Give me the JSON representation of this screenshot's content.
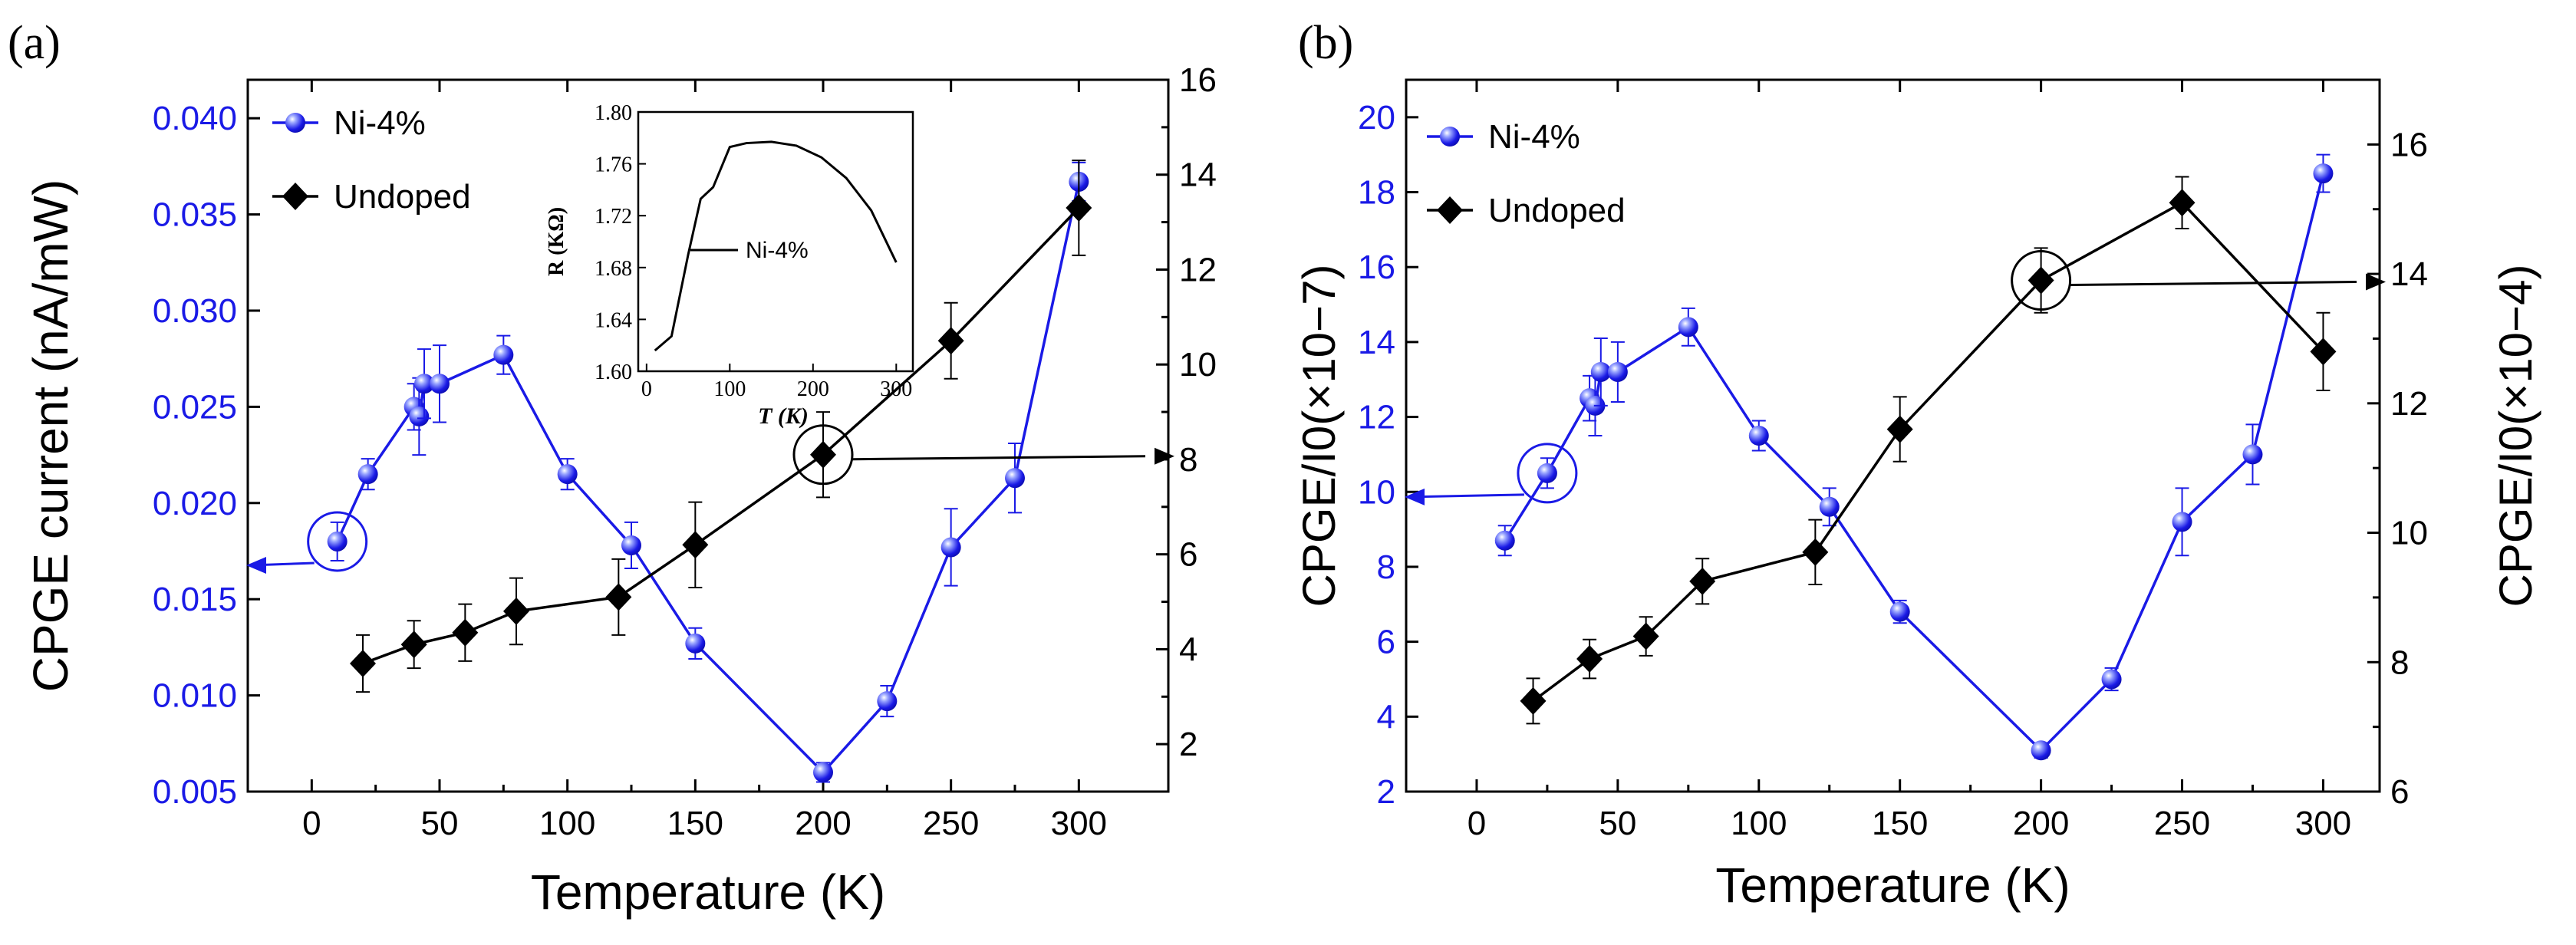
{
  "colors": {
    "blue": "#1a1ae6",
    "black": "#000000",
    "sphere_light": "#9aa6ff",
    "sphere_dark": "#0a0aa8"
  },
  "chart_data": [
    {
      "panel_label": "(a)",
      "type": "line",
      "xlabel": "Temperature (K)",
      "ylabel_left": "CPGE current (nA/mW)",
      "ylabel_right": "",
      "xlim": [
        -25,
        335
      ],
      "ylim_left": [
        0.005,
        0.042
      ],
      "ylim_right": [
        1,
        16
      ],
      "x_ticks": [
        0,
        50,
        100,
        150,
        200,
        250,
        300
      ],
      "x_tick_labels": [
        "0",
        "50",
        "100",
        "150",
        "200",
        "250",
        "300"
      ],
      "y_left_ticks": [
        0.005,
        0.01,
        0.015,
        0.02,
        0.025,
        0.03,
        0.035,
        0.04
      ],
      "y_left_tick_labels": [
        "0.005",
        "0.010",
        "0.015",
        "0.020",
        "0.025",
        "0.030",
        "0.035",
        "0.040"
      ],
      "y_right_ticks": [
        2,
        4,
        6,
        8,
        10,
        12,
        14,
        16
      ],
      "y_right_tick_labels": [
        "2",
        "4",
        "6",
        "8",
        "10",
        "12",
        "14",
        "16"
      ],
      "legend": [
        "Ni-4%",
        "Undoped"
      ],
      "series": [
        {
          "name": "Ni-4%",
          "axis": "left",
          "color": "blue",
          "marker": "sphere",
          "x": [
            10,
            22,
            40,
            42,
            44,
            50,
            75,
            100,
            125,
            150,
            200,
            225,
            250,
            275,
            300
          ],
          "y": [
            0.018,
            0.0215,
            0.025,
            0.0245,
            0.0262,
            0.0262,
            0.0277,
            0.0215,
            0.0178,
            0.0127,
            0.006,
            0.0097,
            0.0177,
            0.0213,
            0.0367
          ],
          "err": [
            0.001,
            0.0008,
            0.0012,
            0.002,
            0.0018,
            0.002,
            0.001,
            0.0008,
            0.0012,
            0.0008,
            0.0005,
            0.0008,
            0.002,
            0.0018,
            0.001
          ]
        },
        {
          "name": "Undoped",
          "axis": "right",
          "color": "black",
          "marker": "diamond",
          "x": [
            20,
            40,
            60,
            80,
            120,
            150,
            200,
            250,
            300
          ],
          "y": [
            3.7,
            4.1,
            4.35,
            4.8,
            5.1,
            6.2,
            8.1,
            10.5,
            13.3
          ],
          "err": [
            0.6,
            0.5,
            0.6,
            0.7,
            0.8,
            0.9,
            0.9,
            0.8,
            1.0
          ]
        }
      ],
      "annotations": [
        {
          "circle_at": [
            10,
            0.018
          ],
          "axis": "left",
          "arrow_to": "left"
        },
        {
          "circle_at": [
            200,
            8.1
          ],
          "axis": "right",
          "arrow_to": "right"
        }
      ],
      "inset": {
        "type": "line",
        "series_label": "Ni-4%",
        "xlabel": "T (K)",
        "ylabel": "R (KΩ)",
        "xlim": [
          -10,
          320
        ],
        "ylim": [
          1.6,
          1.8
        ],
        "x_ticks": [
          0,
          100,
          200,
          300
        ],
        "x_tick_labels": [
          "0",
          "100",
          "200",
          "300"
        ],
        "y_ticks": [
          1.6,
          1.64,
          1.68,
          1.72,
          1.76,
          1.8
        ],
        "y_tick_labels": [
          "1.60",
          "1.64",
          "1.68",
          "1.72",
          "1.76",
          "1.80"
        ],
        "x": [
          10,
          30,
          50,
          65,
          80,
          100,
          120,
          150,
          180,
          210,
          240,
          270,
          300
        ],
        "y": [
          1.616,
          1.627,
          1.69,
          1.733,
          1.742,
          1.773,
          1.776,
          1.777,
          1.774,
          1.765,
          1.749,
          1.724,
          1.684
        ]
      }
    },
    {
      "panel_label": "(b)",
      "type": "line",
      "xlabel": "Temperature (K)",
      "ylabel_left": "CPGE/I0(×10−7)",
      "ylabel_right": "CPGE/I0(×10−4)",
      "xlim": [
        -25,
        320
      ],
      "ylim_left": [
        2,
        21
      ],
      "ylim_right": [
        6,
        17
      ],
      "x_ticks": [
        0,
        50,
        100,
        150,
        200,
        250,
        300
      ],
      "x_tick_labels": [
        "0",
        "50",
        "100",
        "150",
        "200",
        "250",
        "300"
      ],
      "y_left_ticks": [
        2,
        4,
        6,
        8,
        10,
        12,
        14,
        16,
        18,
        20
      ],
      "y_left_tick_labels": [
        "2",
        "4",
        "6",
        "8",
        "10",
        "12",
        "14",
        "16",
        "18",
        "20"
      ],
      "y_right_ticks": [
        6,
        8,
        10,
        12,
        14,
        16
      ],
      "y_right_tick_labels": [
        "6",
        "8",
        "10",
        "12",
        "14",
        "16"
      ],
      "legend": [
        "Ni-4%",
        "Undoped"
      ],
      "series": [
        {
          "name": "Ni-4%",
          "axis": "left",
          "color": "blue",
          "marker": "sphere",
          "x": [
            10,
            25,
            40,
            42,
            44,
            50,
            75,
            100,
            125,
            150,
            200,
            225,
            250,
            275,
            300
          ],
          "y": [
            8.7,
            10.5,
            12.5,
            12.3,
            13.2,
            13.2,
            14.4,
            11.5,
            9.6,
            6.8,
            3.1,
            5.0,
            9.2,
            11.0,
            18.5
          ],
          "err": [
            0.4,
            0.4,
            0.6,
            0.8,
            0.9,
            0.8,
            0.5,
            0.4,
            0.5,
            0.3,
            0.2,
            0.3,
            0.9,
            0.8,
            0.5
          ]
        },
        {
          "name": "Undoped",
          "axis": "right",
          "color": "black",
          "marker": "diamond",
          "x": [
            20,
            40,
            60,
            80,
            120,
            150,
            200,
            250,
            300
          ],
          "y": [
            7.4,
            8.05,
            8.4,
            9.25,
            9.7,
            11.6,
            13.9,
            15.1,
            12.8
          ],
          "err": [
            0.35,
            0.3,
            0.3,
            0.35,
            0.5,
            0.5,
            0.5,
            0.4,
            0.6
          ]
        }
      ],
      "annotations": [
        {
          "circle_at": [
            25,
            10.5
          ],
          "axis": "left",
          "arrow_to": "left"
        },
        {
          "circle_at": [
            200,
            13.9
          ],
          "axis": "right",
          "arrow_to": "right"
        }
      ]
    }
  ]
}
